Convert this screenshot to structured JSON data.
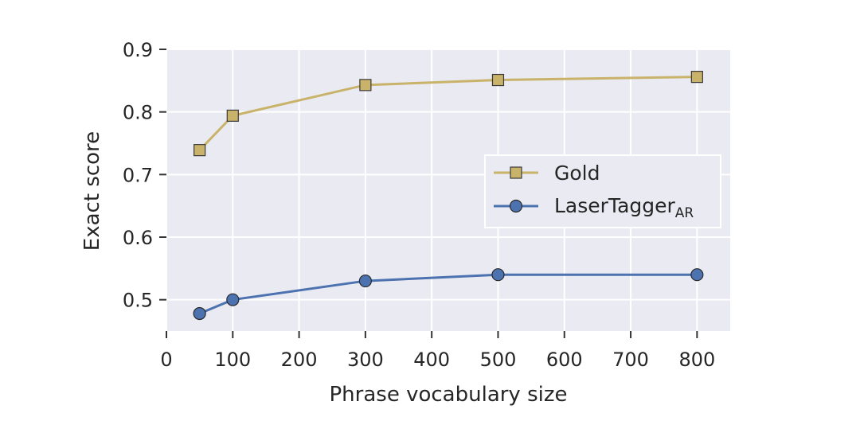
{
  "chart_data": {
    "type": "line",
    "xlabel": "Phrase vocabulary size",
    "ylabel": "Exact score",
    "xlim": [
      0,
      850
    ],
    "ylim": [
      0.45,
      0.9
    ],
    "xticks": [
      "0",
      "100",
      "200",
      "300",
      "400",
      "500",
      "600",
      "700",
      "800"
    ],
    "yticks": [
      "0.5",
      "0.6",
      "0.7",
      "0.8",
      "0.9"
    ],
    "grid": true,
    "legend_position": "right",
    "series": [
      {
        "name": "Gold",
        "marker": "square",
        "color": "#c9b36b",
        "marker_fill": "#c9b36b",
        "x": [
          50,
          100,
          300,
          500,
          800
        ],
        "y": [
          0.739,
          0.794,
          0.843,
          0.851,
          0.856
        ]
      },
      {
        "name": "LaserTagger",
        "name_subscript": "AR",
        "marker": "circle",
        "color": "#4c72b0",
        "marker_fill": "#4c72b0",
        "x": [
          50,
          100,
          300,
          500,
          800
        ],
        "y": [
          0.478,
          0.5,
          0.53,
          0.54,
          0.54
        ]
      }
    ]
  }
}
